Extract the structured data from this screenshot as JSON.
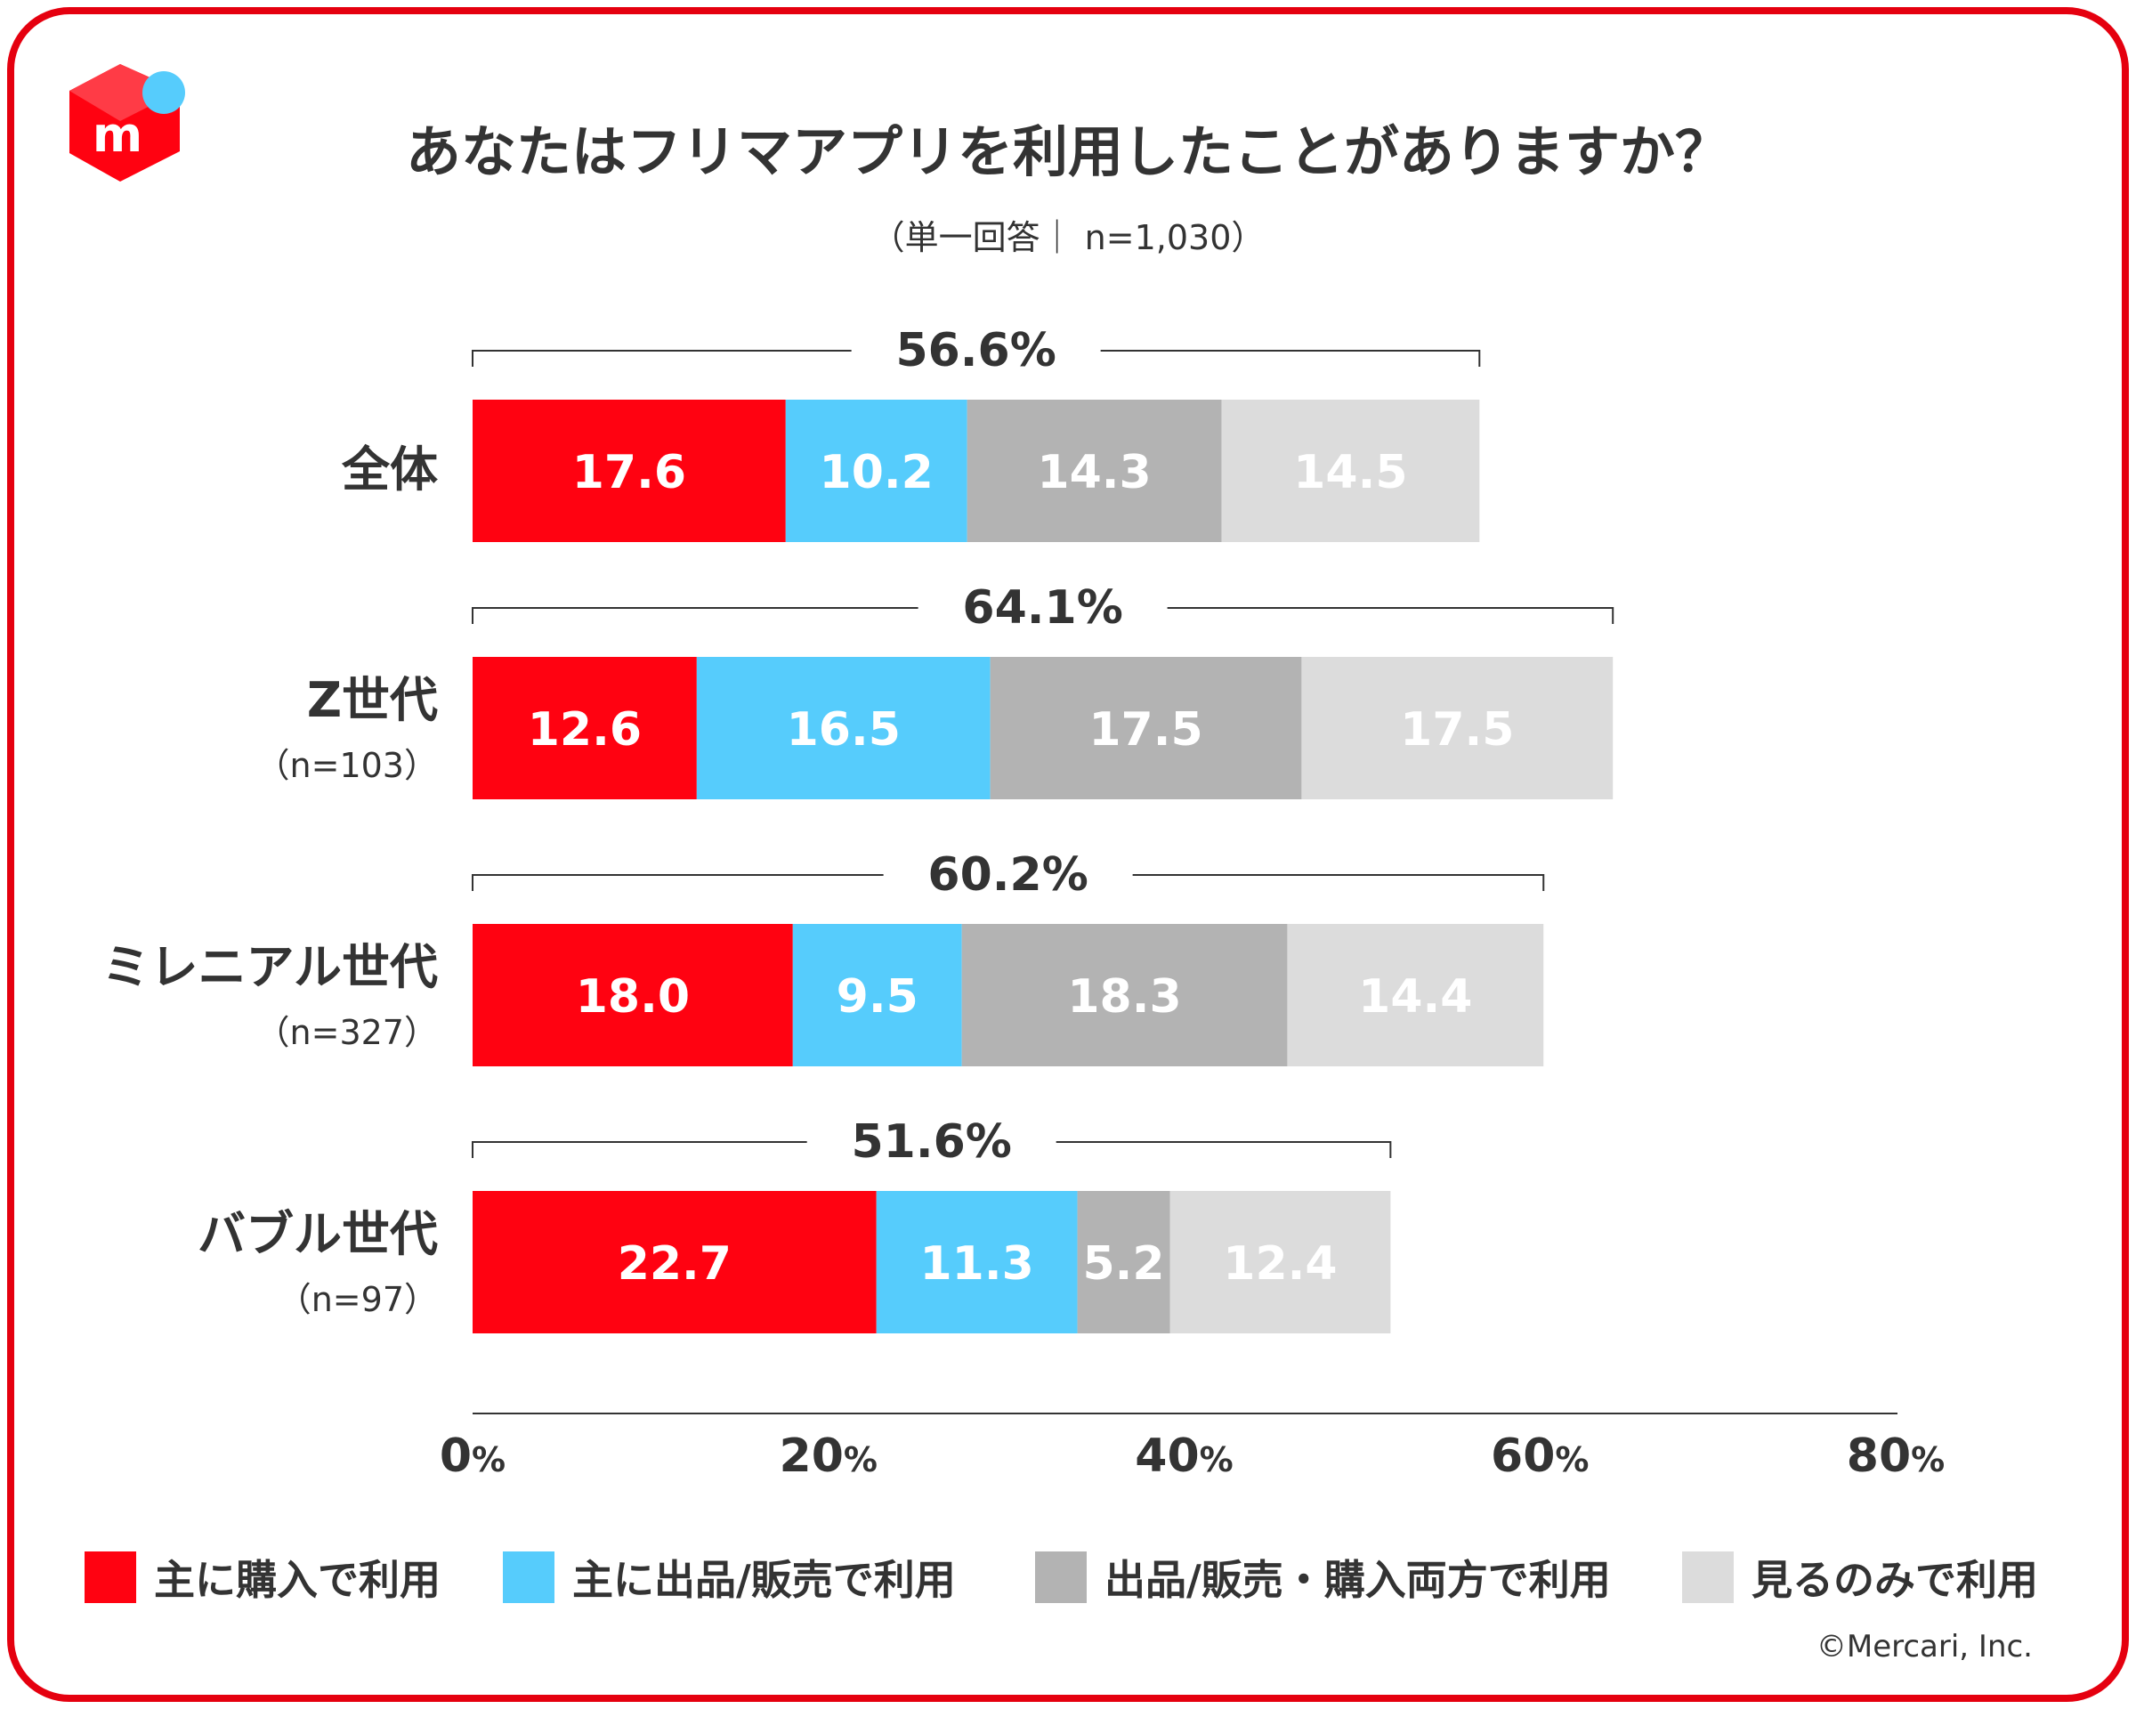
{
  "header": {
    "title": "あなたはフリマアプリを利用したことがありますか？",
    "subtitle": "（単一回答｜ n=1,030）"
  },
  "chart_data": {
    "type": "bar",
    "orientation": "horizontal",
    "stacked": true,
    "title": "あなたはフリマアプリを利用したことがありますか？",
    "xlim": [
      0,
      80
    ],
    "x_ticks": [
      0,
      20,
      40,
      60,
      80
    ],
    "tick_suffix": "%",
    "rows": [
      {
        "name": "全体",
        "n": "",
        "total": "56.6%",
        "values": [
          17.6,
          10.2,
          14.3,
          14.5
        ],
        "labels": [
          "17.6",
          "10.2",
          "14.3",
          "14.5"
        ]
      },
      {
        "name": "Z世代",
        "n": "（n=103）",
        "total": "64.1%",
        "values": [
          12.6,
          16.5,
          17.5,
          17.5
        ],
        "labels": [
          "12.6",
          "16.5",
          "17.5",
          "17.5"
        ]
      },
      {
        "name": "ミレニアル世代",
        "n": "（n=327）",
        "total": "60.2%",
        "values": [
          18.0,
          9.5,
          18.3,
          14.4
        ],
        "labels": [
          "18.0",
          "9.5",
          "18.3",
          "14.4"
        ]
      },
      {
        "name": "バブル世代",
        "n": "（n=97）",
        "total": "51.6%",
        "values": [
          22.7,
          11.3,
          5.2,
          12.4
        ],
        "labels": [
          "22.7",
          "11.3",
          "5.2",
          "12.4"
        ]
      }
    ],
    "series": [
      {
        "name": "主に購入で利用",
        "color": "#ff0211"
      },
      {
        "name": "主に出品/販売で利用",
        "color": "#56ccfc"
      },
      {
        "name": "出品/販売・購入両方で利用",
        "color": "#b3b3b3"
      },
      {
        "name": "見るのみで利用",
        "color": "#dcdcdc"
      }
    ]
  },
  "footer": {
    "copyright": "©Mercari, Inc."
  },
  "colors": {
    "frame": "#e5000f",
    "text": "#333333",
    "logo_red": "#ff0211",
    "logo_blue": "#56ccfc"
  }
}
